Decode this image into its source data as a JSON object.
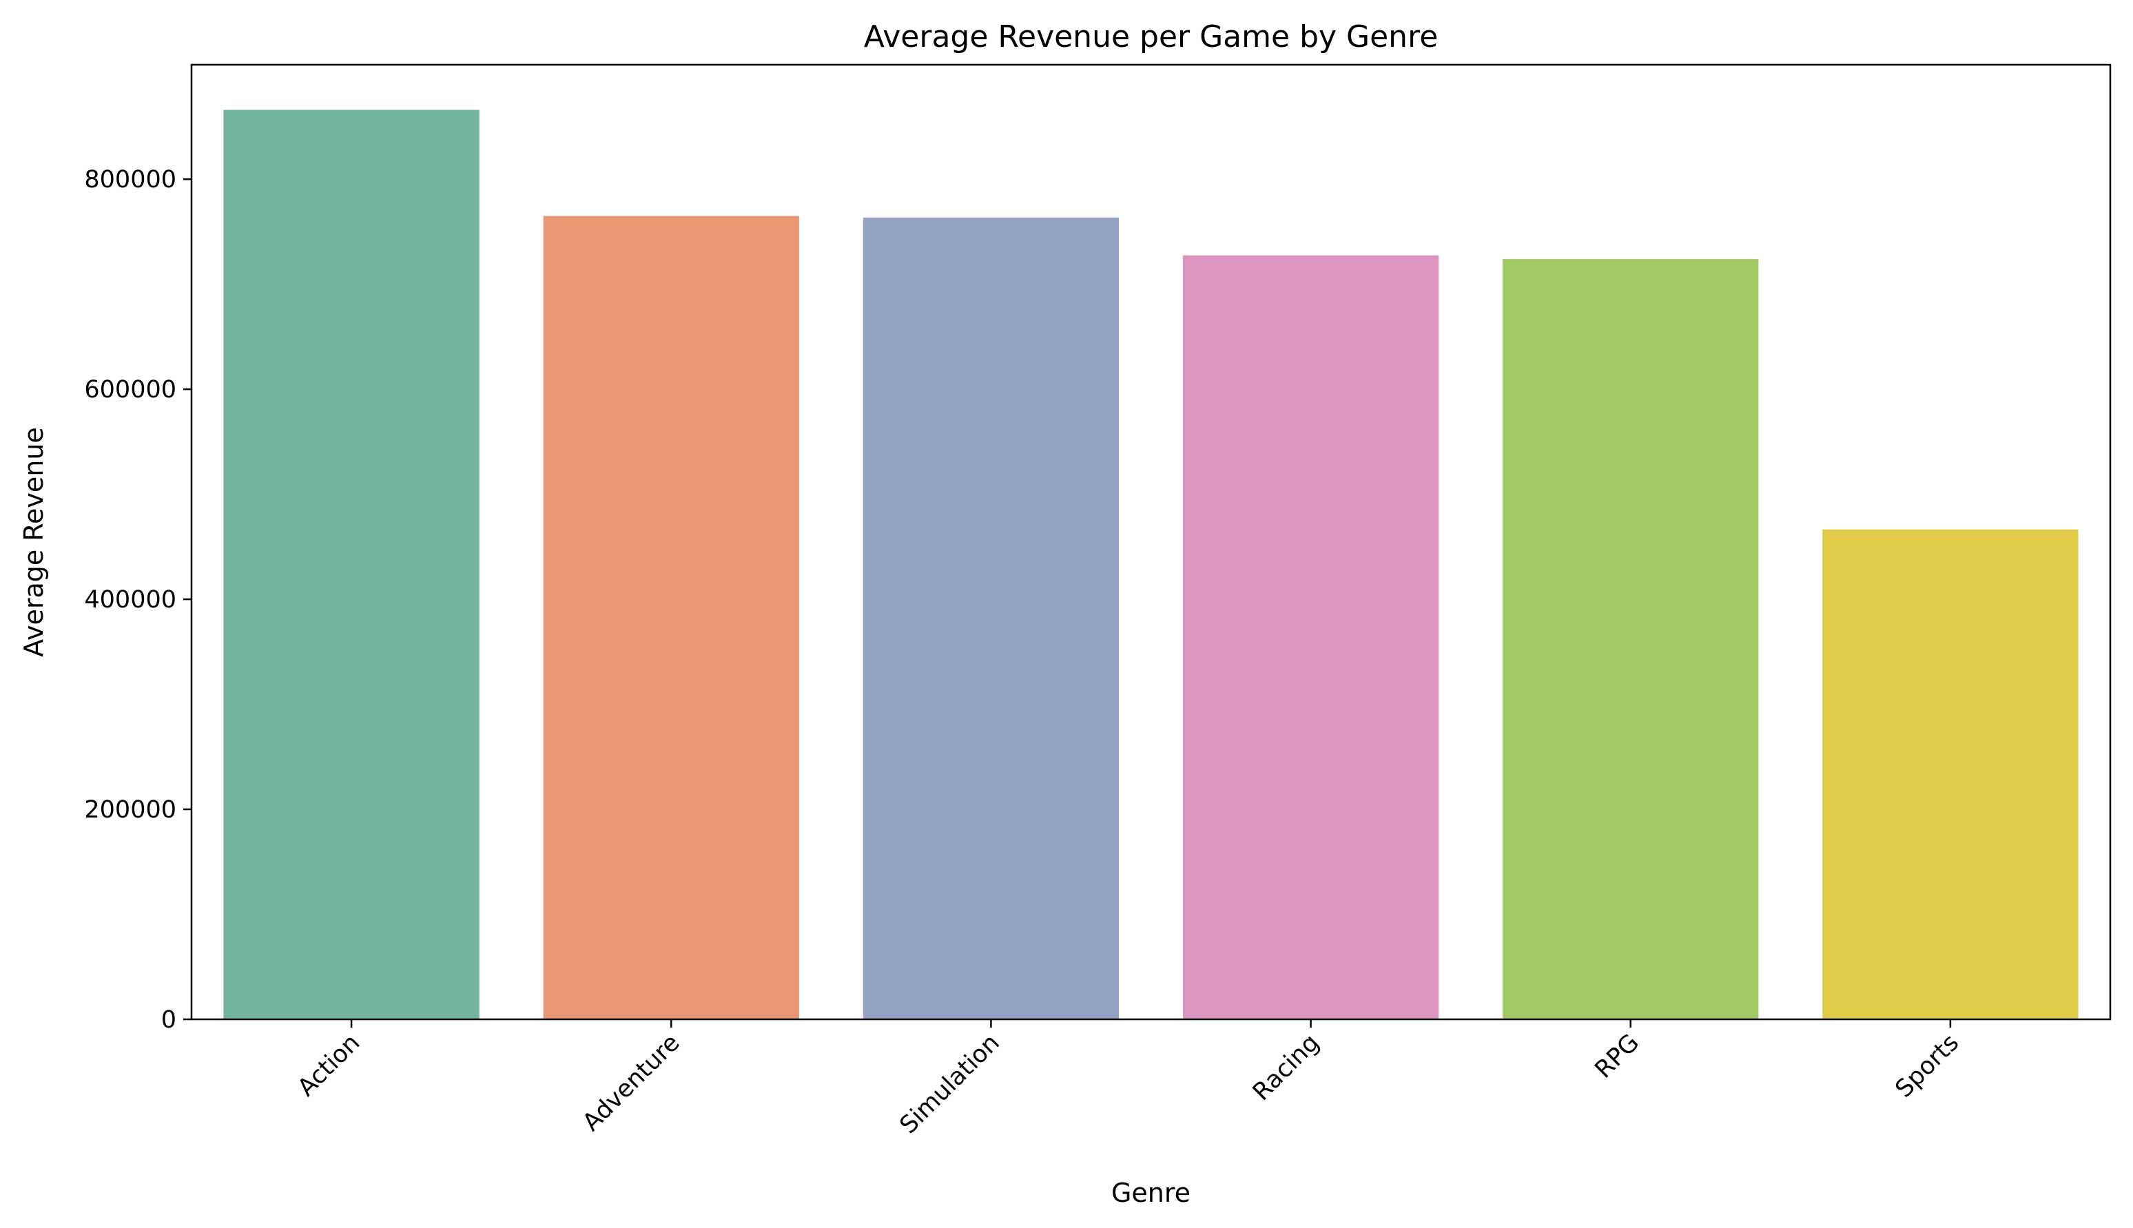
{
  "chart_data": {
    "type": "bar",
    "title": "Average Revenue per Game by Genre",
    "xlabel": "Genre",
    "ylabel": "Average Revenue",
    "categories": [
      "Action",
      "Adventure",
      "Simulation",
      "Racing",
      "RPG",
      "Sports"
    ],
    "values": [
      866000,
      765000,
      763500,
      727500,
      724000,
      466500
    ],
    "colors": [
      "#73b49e",
      "#e99675",
      "#94a3c3",
      "#dc95bf",
      "#a2c866",
      "#e3cb4a"
    ],
    "ylim": [
      0,
      909000
    ],
    "yticks": [
      0,
      200000,
      400000,
      600000,
      800000
    ],
    "ytick_labels": [
      "0",
      "200000",
      "400000",
      "600000",
      "800000"
    ],
    "xtick_rotation": 45,
    "grid": false,
    "legend": "none"
  }
}
